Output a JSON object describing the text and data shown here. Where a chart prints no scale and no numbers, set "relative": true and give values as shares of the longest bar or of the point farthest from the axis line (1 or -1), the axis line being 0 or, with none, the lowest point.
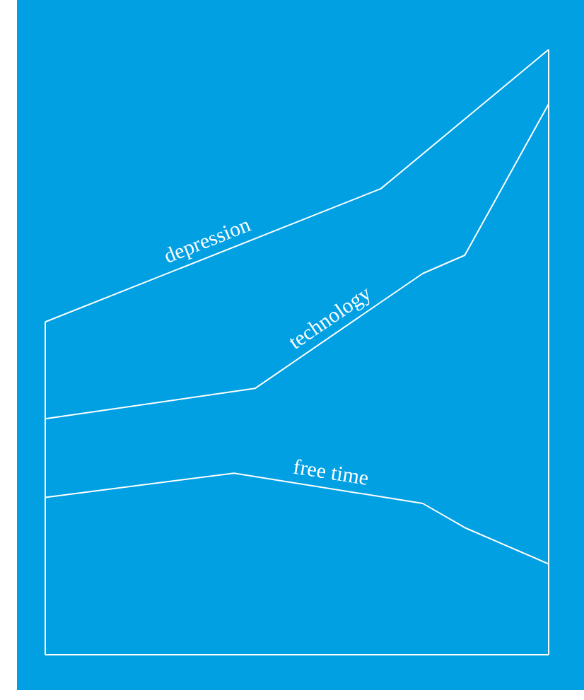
{
  "chart_data": {
    "type": "line",
    "relative": true,
    "legend": false,
    "marker": "none",
    "line_style": "solid",
    "categories": [
      null,
      null,
      null,
      null,
      null,
      null,
      null,
      null,
      null,
      null,
      null,
      null,
      null,
      null,
      null,
      null,
      null,
      null,
      null,
      null,
      null,
      null,
      null,
      null,
      null
    ],
    "series": [
      {
        "name": "depression",
        "color": "#ffffff",
        "values": [
          0.55,
          null,
          null,
          null,
          null,
          null,
          null,
          null,
          null,
          null,
          null,
          null,
          null,
          null,
          null,
          null,
          0.77,
          null,
          null,
          null,
          null,
          null,
          null,
          null,
          1
        ]
      },
      {
        "name": "technology",
        "color": "#ffffff",
        "values": [
          0.39,
          null,
          null,
          null,
          null,
          null,
          null,
          null,
          null,
          null,
          0.44,
          null,
          null,
          null,
          null,
          null,
          null,
          null,
          0.63,
          null,
          0.66,
          null,
          null,
          null,
          0.91
        ]
      },
      {
        "name": "free time",
        "color": "#ffffff",
        "values": [
          0.26,
          null,
          null,
          null,
          null,
          null,
          null,
          null,
          null,
          0.3,
          null,
          null,
          null,
          null,
          null,
          null,
          null,
          null,
          0.25,
          null,
          0.21,
          null,
          null,
          null,
          0.15
        ]
      }
    ]
  }
}
